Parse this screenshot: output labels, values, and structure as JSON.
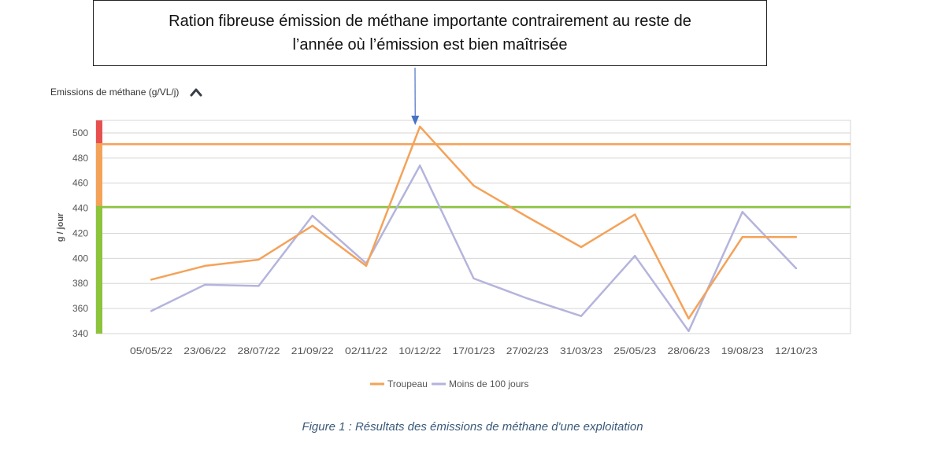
{
  "callout": {
    "line1": "Ration fibreuse émission de méthane importante contrairement au reste de",
    "line2": "l’année où l’émission est bien maîtrisée"
  },
  "header": {
    "title": "Emissions de méthane (g/VL/j)",
    "collapse_icon": "chevron-up-icon"
  },
  "caption": "Figure 1 : Résultats des émissions de méthane d'une exploitation",
  "colors": {
    "troupeau": "#f4a259",
    "moins100": "#b4b4dc",
    "threshold_upper": "#f4a259",
    "threshold_lower": "#8cc43c",
    "zone_red": "#e85050",
    "zone_orange": "#f4a259",
    "zone_green": "#8cc43c",
    "grid": "#d6d6d6",
    "callout_arrow": "#4a72c4"
  },
  "chart_data": {
    "type": "line",
    "title": "Emissions de méthane (g/VL/j)",
    "xlabel": "",
    "ylabel": "g / jour",
    "ylim": [
      340,
      510
    ],
    "yticks": [
      340,
      360,
      380,
      400,
      420,
      440,
      460,
      480,
      500
    ],
    "categories": [
      "05/05/22",
      "23/06/22",
      "28/07/22",
      "21/09/22",
      "02/11/22",
      "10/12/22",
      "17/01/23",
      "27/02/23",
      "31/03/23",
      "25/05/23",
      "28/06/23",
      "19/08/23",
      "12/10/23"
    ],
    "series": [
      {
        "name": "Troupeau",
        "values": [
          383,
          394,
          399,
          426,
          394,
          505,
          458,
          433,
          409,
          435,
          352,
          417,
          417
        ]
      },
      {
        "name": "Moins de 100 jours",
        "values": [
          358,
          379,
          378,
          434,
          396,
          474,
          384,
          368,
          354,
          402,
          342,
          437,
          392
        ]
      }
    ],
    "thresholds": [
      491,
      441
    ],
    "grid": true,
    "legend_position": "bottom-center"
  }
}
